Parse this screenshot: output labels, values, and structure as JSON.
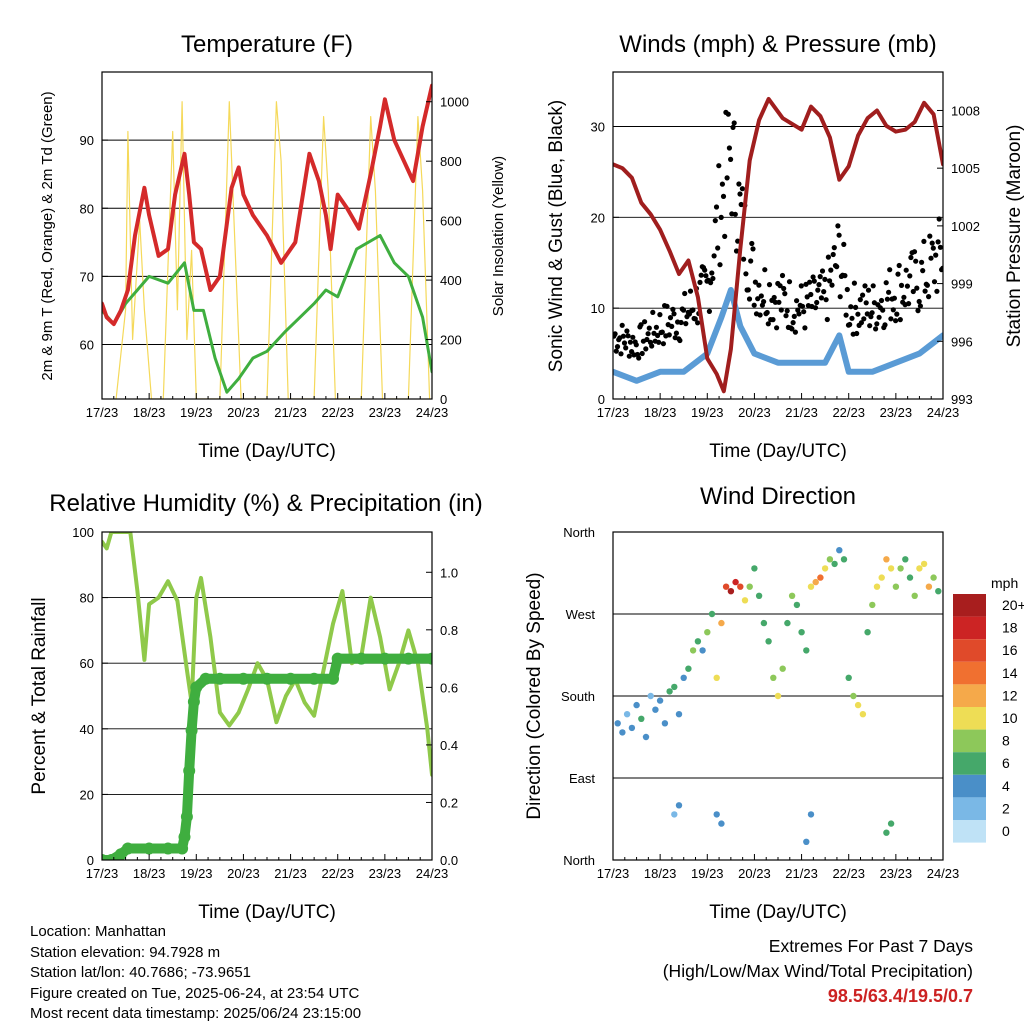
{
  "info": {
    "location": "Location: Manhattan",
    "elevation": "Station elevation: 94.7928 m",
    "latlon": "Station lat/lon: 40.7686; -73.9651",
    "created": "Figure created on Tue, 2025-06-24, at 23:54 UTC",
    "recent": "Most recent data timestamp: 2025/06/24 23:15:00"
  },
  "extremes": {
    "title": "Extremes For Past 7 Days",
    "subtitle": "(High/Low/Max Wind/Total Precipitation)",
    "values": "98.5/63.4/19.5/0.7"
  },
  "colors": {
    "temp": "#d42a2a",
    "td": "#3fae3f",
    "solar": "#f5d95a",
    "gust": "#000000",
    "wind": "#5a9bd5",
    "pressure": "#a01e1e",
    "rh": "#8fc94a",
    "precip": "#3fae3f"
  },
  "chart_data": [
    {
      "id": "temperature",
      "type": "line",
      "title": "Temperature (F)",
      "xlabel": "Time (Day/UTC)",
      "ylabel": "2m & 9m T (Red, Orange) & 2m Td (Green)",
      "ylabel_right": "Solar Insolation (Yellow)",
      "x_ticks": [
        "17/23",
        "18/23",
        "19/23",
        "20/23",
        "21/23",
        "22/23",
        "23/23",
        "24/23"
      ],
      "ylim": [
        52,
        100
      ],
      "y_ticks": [
        60,
        70,
        80,
        90
      ],
      "ylim_right": [
        0,
        1100
      ],
      "y_ticks_right": [
        0,
        200,
        400,
        600,
        800,
        1000
      ],
      "grid": true,
      "series": [
        {
          "role": "temp",
          "x": [
            0,
            0.1,
            0.25,
            0.4,
            0.55,
            0.7,
            0.9,
            1.0,
            1.2,
            1.4,
            1.55,
            1.75,
            1.85,
            1.95,
            2.1,
            2.3,
            2.5,
            2.75,
            2.9,
            3.0,
            3.2,
            3.5,
            3.8,
            4.1,
            4.4,
            4.6,
            4.75,
            4.85,
            5.0,
            5.2,
            5.45,
            5.7,
            5.9,
            6.0,
            6.2,
            6.4,
            6.6,
            6.8,
            7.0
          ],
          "values": [
            66,
            64,
            63,
            65,
            68,
            76,
            83,
            79,
            73,
            74,
            82,
            88,
            82,
            75,
            74,
            68,
            70,
            83,
            86,
            82,
            79,
            76,
            72,
            75,
            88,
            84,
            79,
            74,
            82,
            80,
            77,
            85,
            92,
            96,
            90,
            87,
            84,
            92,
            98
          ]
        },
        {
          "role": "td",
          "x": [
            0,
            0.25,
            0.5,
            0.75,
            1.0,
            1.4,
            1.75,
            1.95,
            2.15,
            2.4,
            2.65,
            2.9,
            3.2,
            3.5,
            3.9,
            4.2,
            4.5,
            4.75,
            5.0,
            5.4,
            5.9,
            6.2,
            6.5,
            6.8,
            7.0
          ],
          "values": [
            65,
            63,
            66,
            68,
            70,
            69,
            72,
            65,
            65,
            58,
            53,
            55,
            58,
            59,
            62,
            64,
            66,
            68,
            67,
            74,
            76,
            72,
            70,
            64,
            56
          ]
        },
        {
          "role": "solar",
          "x": [
            0.3,
            0.5,
            0.55,
            0.65,
            0.8,
            0.9,
            1.05,
            1.3,
            1.5,
            1.6,
            1.7,
            1.8,
            1.9,
            2.0,
            2.3,
            2.5,
            2.7,
            2.8,
            2.95,
            3.3,
            3.5,
            3.7,
            3.8,
            3.95,
            4.3,
            4.5,
            4.7,
            4.8,
            4.95,
            5.3,
            5.5,
            5.7,
            5.8,
            5.95,
            6.3,
            6.5,
            6.7,
            6.8,
            6.95
          ],
          "values": [
            0,
            300,
            900,
            200,
            600,
            300,
            0,
            0,
            900,
            300,
            1000,
            200,
            500,
            0,
            0,
            0,
            1000,
            600,
            0,
            0,
            0,
            1000,
            800,
            0,
            0,
            0,
            950,
            700,
            0,
            0,
            0,
            950,
            700,
            0,
            0,
            0,
            950,
            700,
            0
          ]
        }
      ]
    },
    {
      "id": "winds",
      "type": "scatter",
      "title": "Winds (mph) & Pressure (mb)",
      "xlabel": "Time (Day/UTC)",
      "ylabel": "Sonic Wind & Gust (Blue, Black)",
      "ylabel_right": "Station Pressure (Maroon)",
      "x_ticks": [
        "17/23",
        "18/23",
        "19/23",
        "20/23",
        "21/23",
        "22/23",
        "23/23",
        "24/23"
      ],
      "ylim": [
        0,
        36
      ],
      "y_ticks": [
        0,
        10,
        20,
        30
      ],
      "ylim_right": [
        993,
        1010
      ],
      "y_ticks_right": [
        993,
        996,
        999,
        1002,
        1005,
        1008
      ],
      "grid": true,
      "series": [
        {
          "role": "gust",
          "x": [
            0,
            0.5,
            1.0,
            1.5,
            2.0,
            2.3,
            2.5,
            2.7,
            3.0,
            3.5,
            4.0,
            4.5,
            4.8,
            5.0,
            5.5,
            6.0,
            6.5,
            7.0
          ],
          "values": [
            7,
            6,
            8,
            9,
            12,
            22,
            27,
            20,
            13,
            11,
            10,
            11,
            16,
            10,
            10,
            12,
            13,
            16
          ]
        },
        {
          "role": "wind",
          "x": [
            0,
            0.5,
            1.0,
            1.5,
            2.0,
            2.3,
            2.5,
            2.7,
            3.0,
            3.5,
            4.0,
            4.5,
            4.8,
            5.0,
            5.5,
            6.0,
            6.5,
            7.0
          ],
          "values": [
            3,
            2,
            3,
            3,
            5,
            9,
            12,
            8,
            5,
            4,
            4,
            4,
            7,
            3,
            3,
            4,
            5,
            7
          ]
        },
        {
          "role": "pressure",
          "x": [
            0,
            0.2,
            0.4,
            0.6,
            0.8,
            1.0,
            1.2,
            1.4,
            1.6,
            1.8,
            2.0,
            2.2,
            2.35,
            2.5,
            2.7,
            2.9,
            3.1,
            3.3,
            3.6,
            4.0,
            4.2,
            4.4,
            4.6,
            4.8,
            5.0,
            5.2,
            5.4,
            5.6,
            5.8,
            6.0,
            6.2,
            6.4,
            6.6,
            6.8,
            7.0
          ],
          "values": [
            1005.2,
            1005,
            1004.5,
            1003.2,
            1002.6,
            1001.8,
            1000.7,
            999.5,
            1000.2,
            998.3,
            995.1,
            994.3,
            993.4,
            995.6,
            1000.8,
            1005.4,
            1007.5,
            1008.6,
            1007.6,
            1007,
            1008.2,
            1007.7,
            1006.6,
            1004.4,
            1005.1,
            1006.7,
            1007.6,
            1008,
            1007.2,
            1006.9,
            1007,
            1007.4,
            1008.4,
            1007.8,
            1005.2
          ]
        }
      ]
    },
    {
      "id": "humidity",
      "type": "line",
      "title": "Relative Humidity (%) & Precipitation (in)",
      "xlabel": "Time (Day/UTC)",
      "ylabel": "Percent & Total Rainfall",
      "x_ticks": [
        "17/23",
        "18/23",
        "19/23",
        "20/23",
        "21/23",
        "22/23",
        "23/23",
        "24/23"
      ],
      "ylim": [
        0,
        100
      ],
      "y_ticks": [
        0,
        20,
        40,
        60,
        80,
        100
      ],
      "ylim_right": [
        0,
        1.14
      ],
      "y_ticks_right": [
        0.0,
        0.2,
        0.4,
        0.6,
        0.8,
        1.0
      ],
      "grid": true,
      "series": [
        {
          "role": "rh",
          "x": [
            0,
            0.1,
            0.2,
            0.4,
            0.6,
            0.75,
            0.9,
            1.0,
            1.2,
            1.4,
            1.6,
            1.8,
            1.9,
            2.0,
            2.1,
            2.3,
            2.5,
            2.7,
            2.9,
            3.1,
            3.3,
            3.5,
            3.7,
            3.9,
            4.1,
            4.3,
            4.5,
            4.7,
            4.9,
            5.1,
            5.3,
            5.5,
            5.7,
            5.9,
            6.1,
            6.3,
            6.5,
            6.7,
            6.9,
            7.0
          ],
          "values": [
            97,
            95,
            100,
            100,
            100,
            82,
            61,
            78,
            80,
            85,
            79,
            58,
            48,
            80,
            86,
            68,
            45,
            41,
            45,
            52,
            60,
            55,
            42,
            50,
            55,
            48,
            44,
            58,
            72,
            82,
            60,
            62,
            80,
            68,
            52,
            60,
            70,
            60,
            40,
            26
          ]
        },
        {
          "role": "precip",
          "x": [
            0,
            0.2,
            0.4,
            0.55,
            1.0,
            1.4,
            1.7,
            1.75,
            1.8,
            1.85,
            1.9,
            1.95,
            2.0,
            2.2,
            2.5,
            3.0,
            3.5,
            4.0,
            4.5,
            4.9,
            5.0,
            5.5,
            6.0,
            6.5,
            7.0
          ],
          "values": [
            0,
            0,
            0.02,
            0.04,
            0.04,
            0.04,
            0.04,
            0.08,
            0.15,
            0.31,
            0.45,
            0.55,
            0.6,
            0.63,
            0.63,
            0.63,
            0.63,
            0.63,
            0.63,
            0.63,
            0.7,
            0.7,
            0.7,
            0.7,
            0.7
          ]
        }
      ]
    },
    {
      "id": "direction",
      "type": "scatter",
      "title": "Wind Direction",
      "xlabel": "Time (Day/UTC)",
      "ylabel": "Direction (Colored By Speed)",
      "x_ticks": [
        "17/23",
        "18/23",
        "19/23",
        "20/23",
        "21/23",
        "22/23",
        "23/23",
        "24/23"
      ],
      "y_ticks": [
        "North",
        "East",
        "South",
        "West",
        "North"
      ],
      "y_tick_values": [
        0,
        90,
        180,
        270,
        360
      ],
      "ylim": [
        0,
        360
      ],
      "grid": true,
      "legend": {
        "title": "mph",
        "placement": "right",
        "labels": [
          "20+",
          "18",
          "16",
          "14",
          "12",
          "10",
          "8",
          "6",
          "4",
          "2",
          "0"
        ],
        "colors": [
          "#a81e1e",
          "#cc2424",
          "#e04a2a",
          "#f07030",
          "#f5a94a",
          "#eedd55",
          "#8dc85a",
          "#45a86a",
          "#4a8fc8",
          "#7ab8e6",
          "#bfe2f6"
        ]
      },
      "points": [
        [
          0.1,
          150,
          3
        ],
        [
          0.2,
          140,
          4
        ],
        [
          0.3,
          160,
          2
        ],
        [
          0.4,
          145,
          4
        ],
        [
          0.5,
          170,
          3
        ],
        [
          0.6,
          155,
          5
        ],
        [
          0.7,
          135,
          4
        ],
        [
          0.8,
          180,
          2
        ],
        [
          0.9,
          165,
          3
        ],
        [
          1.0,
          175,
          4
        ],
        [
          1.1,
          150,
          3
        ],
        [
          1.2,
          185,
          5
        ],
        [
          1.3,
          190,
          6
        ],
        [
          1.4,
          160,
          4
        ],
        [
          1.5,
          200,
          3
        ],
        [
          1.6,
          210,
          5
        ],
        [
          1.7,
          230,
          7
        ],
        [
          1.8,
          240,
          6
        ],
        [
          1.9,
          230,
          4
        ],
        [
          2.0,
          250,
          7
        ],
        [
          2.1,
          270,
          6
        ],
        [
          2.2,
          200,
          9
        ],
        [
          2.3,
          260,
          12
        ],
        [
          2.4,
          300,
          16
        ],
        [
          2.5,
          295,
          20
        ],
        [
          2.6,
          305,
          18
        ],
        [
          2.7,
          300,
          15
        ],
        [
          2.8,
          285,
          10
        ],
        [
          2.9,
          300,
          8
        ],
        [
          3.0,
          320,
          6
        ],
        [
          3.1,
          290,
          5
        ],
        [
          3.2,
          260,
          6
        ],
        [
          3.3,
          240,
          5
        ],
        [
          3.4,
          200,
          8
        ],
        [
          3.5,
          180,
          9
        ],
        [
          3.6,
          210,
          7
        ],
        [
          3.7,
          260,
          6
        ],
        [
          3.8,
          290,
          7
        ],
        [
          3.9,
          280,
          6
        ],
        [
          4.0,
          250,
          5
        ],
        [
          4.1,
          230,
          6
        ],
        [
          4.2,
          300,
          9
        ],
        [
          4.3,
          305,
          12
        ],
        [
          4.4,
          310,
          14
        ],
        [
          4.5,
          320,
          10
        ],
        [
          4.6,
          330,
          7
        ],
        [
          4.7,
          325,
          5
        ],
        [
          4.8,
          340,
          4
        ],
        [
          4.9,
          330,
          6
        ],
        [
          5.0,
          200,
          6
        ],
        [
          5.1,
          180,
          7
        ],
        [
          5.2,
          170,
          10
        ],
        [
          5.3,
          160,
          9
        ],
        [
          5.4,
          250,
          6
        ],
        [
          5.5,
          280,
          7
        ],
        [
          5.6,
          300,
          9
        ],
        [
          5.7,
          310,
          10
        ],
        [
          5.8,
          330,
          12
        ],
        [
          5.9,
          320,
          9
        ],
        [
          6.0,
          300,
          8
        ],
        [
          6.1,
          320,
          7
        ],
        [
          6.2,
          330,
          5
        ],
        [
          6.3,
          310,
          6
        ],
        [
          6.4,
          290,
          7
        ],
        [
          6.5,
          320,
          9
        ],
        [
          6.6,
          325,
          10
        ],
        [
          6.7,
          300,
          12
        ],
        [
          6.8,
          310,
          8
        ],
        [
          6.9,
          295,
          6
        ],
        [
          1.3,
          50,
          2
        ],
        [
          1.4,
          60,
          3
        ],
        [
          2.2,
          50,
          3
        ],
        [
          2.3,
          40,
          4
        ],
        [
          4.1,
          20,
          4
        ],
        [
          4.2,
          50,
          3
        ],
        [
          5.8,
          30,
          6
        ],
        [
          5.9,
          40,
          5
        ]
      ]
    }
  ]
}
